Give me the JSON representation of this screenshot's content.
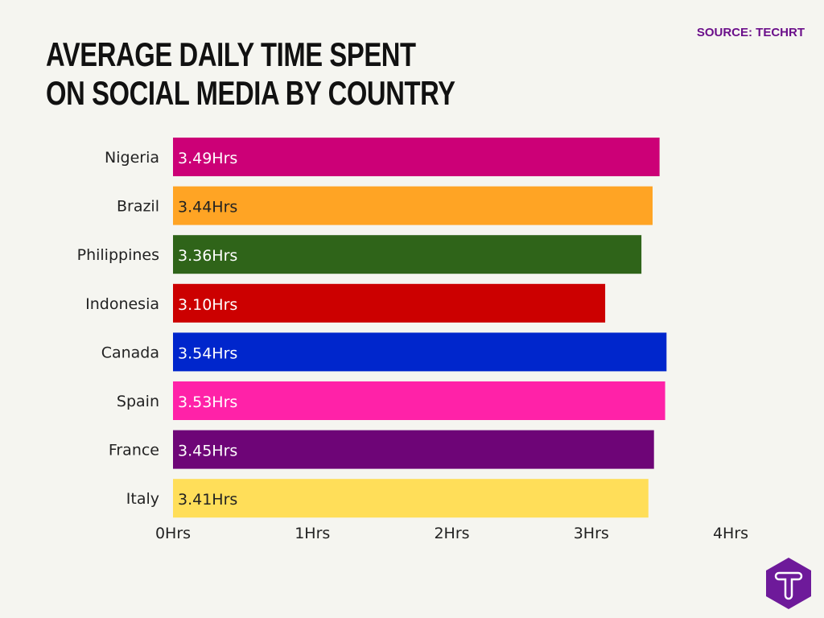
{
  "source": "SOURCE: TECHRT",
  "chart_data": {
    "type": "bar",
    "orientation": "horizontal",
    "title": "AVERAGE DAILY TIME SPENT ON SOCIAL MEDIA BY COUNTRY",
    "categories": [
      "Nigeria",
      "Brazil",
      "Philippines",
      "Indonesia",
      "Canada",
      "Spain",
      "France",
      "Italy"
    ],
    "values": [
      3.49,
      3.44,
      3.36,
      3.1,
      3.54,
      3.53,
      3.45,
      3.41
    ],
    "data_labels": [
      "3.49Hrs",
      "3.44Hrs",
      "3.36Hrs",
      "3.10Hrs",
      "3.54Hrs",
      "3.53Hrs",
      "3.45Hrs",
      "3.41Hrs"
    ],
    "colors": [
      "#cc0077",
      "#ffa424",
      "#2f6419",
      "#cc0000",
      "#0026cc",
      "#ff22a8",
      "#6e0577",
      "#ffde59"
    ],
    "label_colors": [
      "#ffffff",
      "#222222",
      "#ffffff",
      "#ffffff",
      "#ffffff",
      "#ffffff",
      "#ffffff",
      "#222222"
    ],
    "xlim": [
      0,
      4
    ],
    "xticks": [
      0,
      1,
      2,
      3,
      4
    ],
    "xtick_labels": [
      "0Hrs",
      "1Hrs",
      "2Hrs",
      "3Hrs",
      "4Hrs"
    ],
    "xlabel": "",
    "ylabel": "",
    "grid": false,
    "legend": "none"
  },
  "logo": {
    "letter": "T",
    "color": "#6e1a9a"
  }
}
